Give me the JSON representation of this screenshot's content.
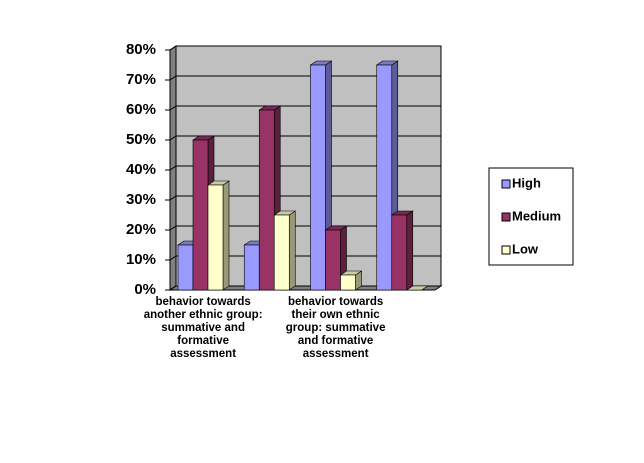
{
  "chart_data": {
    "type": "bar3d",
    "categories": [
      "behavior towards another ethnic group:  summative and formative assessment",
      null,
      "behavior towards their own ethnic group: summative and formative assessment",
      null
    ],
    "series": [
      {
        "name": "High",
        "color": "#9999ff",
        "values": [
          15,
          15,
          75,
          75
        ]
      },
      {
        "name": "Medium",
        "color": "#993366",
        "values": [
          50,
          60,
          20,
          25
        ]
      },
      {
        "name": "Low",
        "color": "#ffffcc",
        "values": [
          35,
          25,
          5,
          0
        ]
      }
    ],
    "ylim": [
      0,
      80
    ],
    "yticks": [
      {
        "value": 0,
        "label": "0%"
      },
      {
        "value": 10,
        "label": "10%"
      },
      {
        "value": 20,
        "label": "20%"
      },
      {
        "value": 30,
        "label": "30%"
      },
      {
        "value": 40,
        "label": "40%"
      },
      {
        "value": 50,
        "label": "50%"
      },
      {
        "value": 60,
        "label": "60%"
      },
      {
        "value": 70,
        "label": "70%"
      },
      {
        "value": 80,
        "label": "80%"
      }
    ],
    "grid": true,
    "legend": "right"
  }
}
